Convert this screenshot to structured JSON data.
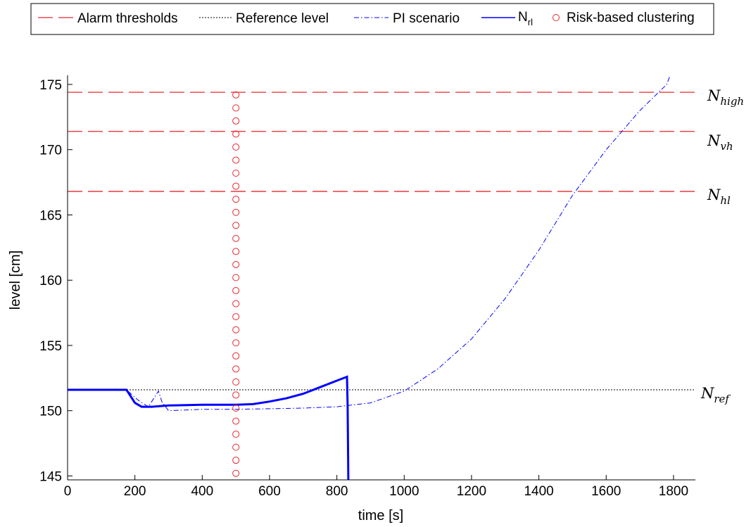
{
  "chart_data": {
    "type": "line",
    "xlabel": "time [s]",
    "ylabel": "level [cm]",
    "xlim": [
      0,
      1865
    ],
    "ylim": [
      144.7,
      175.7
    ],
    "xticks": [
      0,
      200,
      400,
      600,
      800,
      1000,
      1200,
      1400,
      1600,
      1800
    ],
    "yticks": [
      145,
      150,
      155,
      160,
      165,
      170,
      175
    ],
    "grid": false,
    "legend_placement": "top, outside plot",
    "legend": [
      {
        "label": "Alarm thresholds",
        "style": "dashed",
        "color": "#e8282d"
      },
      {
        "label": "Reference level",
        "style": "dotted",
        "color": "#000000"
      },
      {
        "label": "PI scenario",
        "style": "dash-dot",
        "color": "#0000ff"
      },
      {
        "label": "N",
        "label_sub": "rl",
        "style": "solid",
        "color": "#0000ff"
      },
      {
        "label": "Risk-based clustering",
        "style": "circle-marker",
        "color": "#e8282d"
      }
    ],
    "series": [
      {
        "name": "Alarm thresholds",
        "lines": [
          {
            "y": 174.4,
            "label": "N",
            "sub": "high"
          },
          {
            "y": 171.4,
            "label": "N",
            "sub": "vh"
          },
          {
            "y": 166.8,
            "label": "N",
            "sub": "hl"
          }
        ]
      },
      {
        "name": "Reference level",
        "y": 151.6,
        "label": "N",
        "sub": "ref"
      },
      {
        "name": "PI scenario",
        "x": [
          0,
          175,
          210,
          240,
          270,
          280,
          300,
          400,
          500,
          600,
          700,
          800,
          900,
          1000,
          1100,
          1200,
          1300,
          1400,
          1500,
          1600,
          1700,
          1780,
          1790
        ],
        "y": [
          151.6,
          151.6,
          150.8,
          150.3,
          151.5,
          150.7,
          150.0,
          150.1,
          150.1,
          150.15,
          150.2,
          150.3,
          150.6,
          151.5,
          153.2,
          155.5,
          158.6,
          162.3,
          166.5,
          170.0,
          173.0,
          175.0,
          175.7
        ]
      },
      {
        "name": "N",
        "name_sub": "rl",
        "x": [
          0,
          175,
          200,
          220,
          250,
          300,
          400,
          500,
          550,
          600,
          650,
          700,
          750,
          800,
          830,
          832,
          834
        ],
        "y": [
          151.6,
          151.6,
          150.6,
          150.3,
          150.3,
          150.4,
          150.45,
          150.45,
          150.5,
          150.7,
          150.95,
          151.3,
          151.8,
          152.3,
          152.6,
          150.4,
          144.7
        ]
      },
      {
        "name": "Risk-based clustering",
        "x": 500,
        "y": [
          145.2,
          146.2,
          147.2,
          148.2,
          149.2,
          150.2,
          151.2,
          152.2,
          153.2,
          154.2,
          155.2,
          156.2,
          157.2,
          158.2,
          159.2,
          160.2,
          161.2,
          162.2,
          163.2,
          164.2,
          165.2,
          166.2,
          167.2,
          168.2,
          169.2,
          170.2,
          171.2,
          172.2,
          173.2,
          174.2
        ]
      }
    ]
  }
}
